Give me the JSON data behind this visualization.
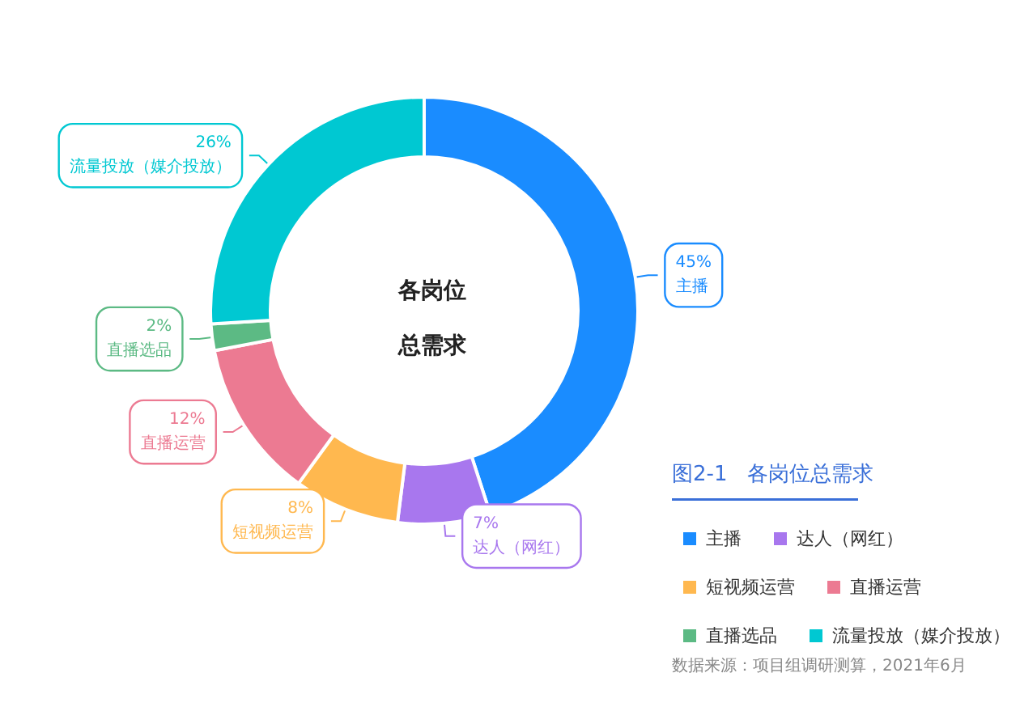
{
  "chart_data": {
    "type": "donut",
    "title": "各岗位总需求",
    "legend_title": "图2-1   各岗位总需求",
    "categories": [
      "主播",
      "达人（网红）",
      "短视频运营",
      "直播运营",
      "直播选品",
      "流量投放（媒介投放）"
    ],
    "values": [
      45,
      7,
      8,
      12,
      2,
      26
    ],
    "colors": [
      "#1a8cff",
      "#a877ee",
      "#ffb84f",
      "#ec7a92",
      "#5cba84",
      "#00c8d2"
    ],
    "value_labels": [
      "45%",
      "7%",
      "8%",
      "12%",
      "2%",
      "26%"
    ],
    "legend": "bottom right",
    "annotations": [
      "数据来源：项目组调研测算，2021年6月"
    ]
  }
}
